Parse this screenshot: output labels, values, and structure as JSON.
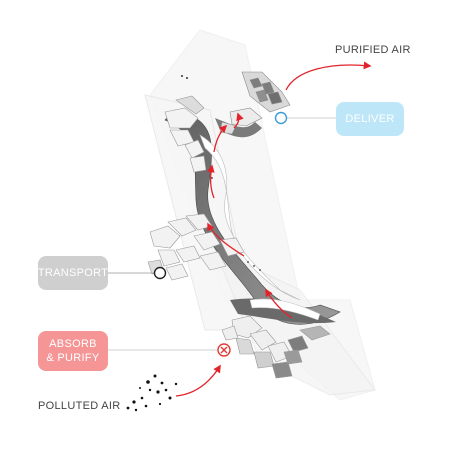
{
  "labels": {
    "purified_air": "PURIFIED AIR",
    "polluted_air": "POLLUTED AIR"
  },
  "stages": {
    "deliver": {
      "label": "DELIVER",
      "color": "#bde6f8",
      "marker": "circle",
      "marker_color": "#3d9bd6"
    },
    "transport": {
      "label": "TRANSPORT",
      "color": "#cfcfcf",
      "marker": "circle",
      "marker_color": "#222222"
    },
    "absorb": {
      "line1": "ABSORB",
      "line2": "& PURIFY",
      "color": "#f59595",
      "marker": "cross-circle",
      "marker_color": "#e53935"
    }
  },
  "colors": {
    "flow_arrow": "#e3232c",
    "structure_dark": "#6e6e6e",
    "structure_light": "#e6e6e6"
  }
}
